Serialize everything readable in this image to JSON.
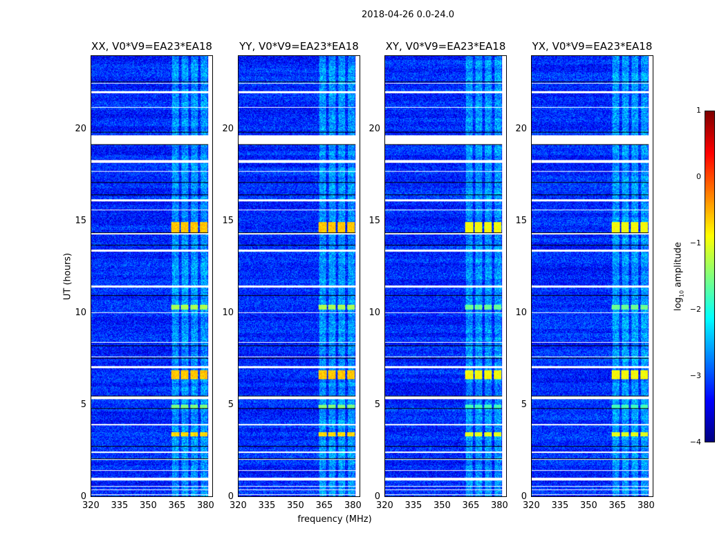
{
  "chart_data": {
    "type": "heatmap",
    "title": "2018-04-26 0.0-24.0",
    "xlabel": "frequency (MHz)",
    "ylabel": "UT (hours)",
    "xlim": [
      320,
      384
    ],
    "ylim": [
      0,
      24
    ],
    "xticks": [
      "320",
      "335",
      "350",
      "365",
      "380"
    ],
    "yticks": [
      "0",
      "5",
      "10",
      "15",
      "20"
    ],
    "panels": [
      {
        "title": "XX, V0*V9=EA23*EA18"
      },
      {
        "title": "YY, V0*V9=EA23*EA18"
      },
      {
        "title": "XY, V0*V9=EA23*EA18"
      },
      {
        "title": "YX, V0*V9=EA23*EA18"
      }
    ],
    "colorbar": {
      "label_prefix": "log",
      "label_sub": "10",
      "label_suffix": " amplitude",
      "range": [
        -4,
        1
      ],
      "ticks": [
        "1",
        "0",
        "−1",
        "−2",
        "−3",
        "−4"
      ],
      "colormap": "jet"
    },
    "background_level": -3.2,
    "rfi_band_mhz": [
      362,
      382
    ],
    "flagged_gaps_ut": [
      [
        0.1,
        0.15
      ],
      [
        0.35,
        0.4
      ],
      [
        0.55,
        0.6
      ],
      [
        0.9,
        1.05
      ],
      [
        1.4,
        1.45
      ],
      [
        2.0,
        2.05
      ],
      [
        2.4,
        2.45
      ],
      [
        3.9,
        3.95
      ],
      [
        5.3,
        5.45
      ],
      [
        7.0,
        7.1
      ],
      [
        7.6,
        7.65
      ],
      [
        8.4,
        8.45
      ],
      [
        10.0,
        10.05
      ],
      [
        11.4,
        11.5
      ],
      [
        13.35,
        13.45
      ],
      [
        14.3,
        14.35
      ],
      [
        15.6,
        15.65
      ],
      [
        16.1,
        16.2
      ],
      [
        17.7,
        17.75
      ],
      [
        18.2,
        18.35
      ],
      [
        19.2,
        19.7
      ],
      [
        21.2,
        21.25
      ],
      [
        22.0,
        22.1
      ],
      [
        22.5,
        22.55
      ]
    ],
    "bright_events": [
      {
        "ut": [
          3.3,
          3.5
        ],
        "level": -0.7
      },
      {
        "ut": [
          4.8,
          5.0
        ],
        "level": -1.5
      },
      {
        "ut": [
          6.4,
          6.9
        ],
        "level": -0.6
      },
      {
        "ut": [
          10.2,
          10.45
        ],
        "level": -1.3
      },
      {
        "ut": [
          14.4,
          14.95
        ],
        "level": -0.6
      }
    ]
  }
}
